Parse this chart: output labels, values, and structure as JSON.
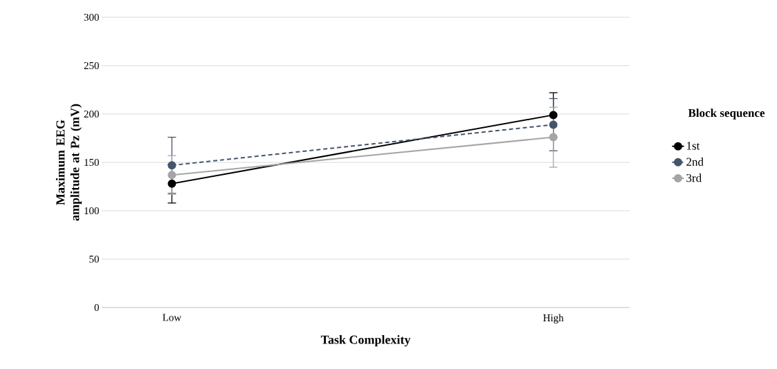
{
  "chart_data": {
    "type": "line",
    "xlabel": "Task Complexity",
    "ylabel": "Maximum EEG amplitude at Pz (mV)",
    "legend_title": "Block sequence",
    "categories": [
      "Low",
      "High"
    ],
    "series": [
      {
        "name": "1st",
        "color": "#000000",
        "values": [
          128,
          199
        ],
        "errors": [
          20,
          23
        ],
        "line_style": "solid"
      },
      {
        "name": "2nd",
        "color": "#44546a",
        "values": [
          147,
          189
        ],
        "errors": [
          29,
          27
        ],
        "line_style": "dashed"
      },
      {
        "name": "3rd",
        "color": "#a5a5a5",
        "values": [
          137,
          176
        ],
        "errors": [
          20,
          31
        ],
        "line_style": "solid"
      }
    ],
    "ylim": [
      0,
      300
    ],
    "yticks": [
      0,
      50,
      100,
      150,
      200,
      250,
      300
    ],
    "grid": "y",
    "legend": "right",
    "marker": "circle"
  }
}
